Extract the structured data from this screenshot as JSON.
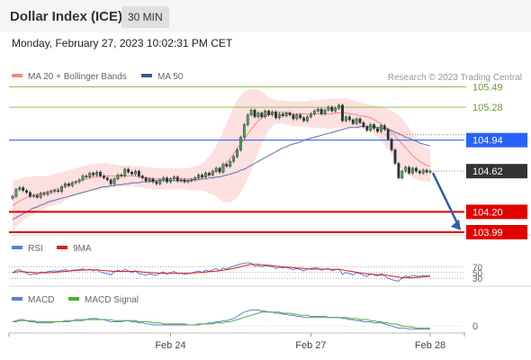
{
  "header": {
    "title": "Dollar Index (ICE)",
    "timeframe": "30 MIN"
  },
  "datetime": "Monday, February 27, 2023 10:02:31 PM CET",
  "legend": {
    "bollinger": {
      "label": "MA 20 + Bollinger Bands",
      "color": "#f28b82"
    },
    "ma50": {
      "label": "MA 50",
      "color": "#2d5f9e"
    },
    "rsi": {
      "label": "RSI",
      "color": "#5b7fd6"
    },
    "rsi_ma": {
      "label": "9MA",
      "color": "#d62020"
    },
    "macd": {
      "label": "MACD",
      "color": "#5b7fd6"
    },
    "macd_signal": {
      "label": "MACD Signal",
      "color": "#4caf3a"
    }
  },
  "credit": "Research © 2023 Trading Central",
  "levels": [
    {
      "value": 105.49,
      "label": "105.49",
      "kind": "resistance",
      "color": "#8bc34a"
    },
    {
      "value": 105.28,
      "label": "105.28",
      "kind": "resistance",
      "color": "#8bc34a"
    },
    {
      "value": 104.94,
      "label": "104.94",
      "kind": "pivot",
      "color": "#2962ff"
    },
    {
      "value": 104.62,
      "label": "104.62",
      "kind": "last",
      "color": "#333333"
    },
    {
      "value": 104.2,
      "label": "104.20",
      "kind": "support",
      "color": "#e00000"
    },
    {
      "value": 103.99,
      "label": "103.99",
      "kind": "support",
      "color": "#e00000"
    }
  ],
  "rsi_levels": [
    "70",
    "50",
    "30"
  ],
  "macd_zero": "0",
  "x_labels": [
    "Feb 24",
    "Feb 27",
    "Feb 28"
  ],
  "chart_data": {
    "type": "candlestick",
    "ylim": [
      103.99,
      105.55
    ],
    "close": [
      104.36,
      104.43,
      104.45,
      104.42,
      104.4,
      104.36,
      104.37,
      104.35,
      104.39,
      104.38,
      104.4,
      104.41,
      104.42,
      104.41,
      104.46,
      104.49,
      104.47,
      104.5,
      104.51,
      104.53,
      104.57,
      104.56,
      104.6,
      104.58,
      104.61,
      104.57,
      104.55,
      104.53,
      104.49,
      104.54,
      104.58,
      104.57,
      104.64,
      104.61,
      104.59,
      104.62,
      104.57,
      104.55,
      104.52,
      104.54,
      104.51,
      104.49,
      104.53,
      104.55,
      104.51,
      104.54,
      104.56,
      104.52,
      104.53,
      104.51,
      104.52,
      104.53,
      104.55,
      104.58,
      104.56,
      104.6,
      104.58,
      104.62,
      104.65,
      104.61,
      104.69,
      104.67,
      104.72,
      104.77,
      104.84,
      104.97,
      105.1,
      105.2,
      105.25,
      105.18,
      105.22,
      105.18,
      105.24,
      105.2,
      105.23,
      105.17,
      105.21,
      105.19,
      105.22,
      105.2,
      105.16,
      105.2,
      105.17,
      105.14,
      105.18,
      105.21,
      105.24,
      105.26,
      105.21,
      105.25,
      105.28,
      105.24,
      105.27,
      105.3,
      105.14,
      105.18,
      105.15,
      105.11,
      105.16,
      105.12,
      105.08,
      105.04,
      105.1,
      105.06,
      105.03,
      105.09,
      105.05,
      104.95,
      104.84,
      104.7,
      104.55,
      104.62,
      104.66,
      104.6,
      104.65,
      104.62,
      104.6,
      104.63,
      104.61,
      104.62
    ],
    "ma20": [
      104.26,
      104.29,
      104.31,
      104.33,
      104.35,
      104.36,
      104.37,
      104.38,
      104.39,
      104.4,
      104.41,
      104.42,
      104.43,
      104.44,
      104.45,
      104.47,
      104.48,
      104.5,
      104.51,
      104.52,
      104.53,
      104.54,
      104.55,
      104.56,
      104.56,
      104.57,
      104.57,
      104.57,
      104.57,
      104.57,
      104.57,
      104.57,
      104.57,
      104.57,
      104.57,
      104.57,
      104.56,
      104.56,
      104.55,
      104.55,
      104.54,
      104.54,
      104.54,
      104.54,
      104.54,
      104.54,
      104.54,
      104.54,
      104.54,
      104.54,
      104.54,
      104.54,
      104.55,
      104.55,
      104.56,
      104.57,
      104.58,
      104.6,
      104.62,
      104.64,
      104.67,
      104.71,
      104.75,
      104.8,
      104.85,
      104.9,
      104.95,
      105.0,
      105.05,
      105.1,
      105.14,
      105.17,
      105.19,
      105.21,
      105.22,
      105.23,
      105.23,
      105.23,
      105.22,
      105.22,
      105.21,
      105.21,
      105.21,
      105.21,
      105.21,
      105.21,
      105.21,
      105.21,
      105.21,
      105.21,
      105.21,
      105.21,
      105.22,
      105.22,
      105.22,
      105.22,
      105.21,
      105.21,
      105.2,
      105.19,
      105.19,
      105.18,
      105.17,
      105.15,
      105.13,
      105.11,
      105.08,
      105.05,
      105.02,
      104.98,
      104.94,
      104.9,
      104.86,
      104.82,
      104.78,
      104.75,
      104.72,
      104.7,
      104.68,
      104.67
    ],
    "bb_upper": [
      104.52,
      104.53,
      104.54,
      104.55,
      104.56,
      104.56,
      104.57,
      104.57,
      104.57,
      104.57,
      104.57,
      104.58,
      104.59,
      104.6,
      104.61,
      104.62,
      104.63,
      104.64,
      104.65,
      104.66,
      104.67,
      104.68,
      104.69,
      104.69,
      104.7,
      104.7,
      104.7,
      104.7,
      104.69,
      104.69,
      104.68,
      104.68,
      104.68,
      104.68,
      104.68,
      104.68,
      104.67,
      104.67,
      104.66,
      104.66,
      104.65,
      104.65,
      104.65,
      104.65,
      104.65,
      104.65,
      104.65,
      104.65,
      104.65,
      104.65,
      104.65,
      104.66,
      104.67,
      104.68,
      104.7,
      104.73,
      104.77,
      104.82,
      104.88,
      104.95,
      105.04,
      105.12,
      105.2,
      105.28,
      105.35,
      105.4,
      105.44,
      105.46,
      105.47,
      105.47,
      105.46,
      105.44,
      105.41,
      105.38,
      105.36,
      105.35,
      105.35,
      105.35,
      105.34,
      105.34,
      105.34,
      105.34,
      105.34,
      105.34,
      105.34,
      105.35,
      105.35,
      105.35,
      105.36,
      105.36,
      105.36,
      105.37,
      105.37,
      105.37,
      105.37,
      105.37,
      105.36,
      105.35,
      105.34,
      105.33,
      105.32,
      105.31,
      105.3,
      105.3,
      105.29,
      105.28,
      105.27,
      105.26,
      105.24,
      105.22,
      105.2,
      105.16,
      105.11,
      105.06,
      105.01,
      104.96,
      104.92,
      104.88,
      104.85,
      104.83
    ],
    "bb_lower": [
      104.0,
      104.05,
      104.08,
      104.11,
      104.14,
      104.16,
      104.17,
      104.19,
      104.21,
      104.23,
      104.25,
      104.26,
      104.27,
      104.28,
      104.29,
      104.32,
      104.33,
      104.36,
      104.37,
      104.38,
      104.39,
      104.4,
      104.41,
      104.43,
      104.42,
      104.44,
      104.44,
      104.44,
      104.45,
      104.45,
      104.46,
      104.46,
      104.46,
      104.46,
      104.46,
      104.46,
      104.45,
      104.45,
      104.44,
      104.44,
      104.43,
      104.43,
      104.43,
      104.43,
      104.43,
      104.43,
      104.43,
      104.43,
      104.43,
      104.43,
      104.43,
      104.42,
      104.43,
      104.42,
      104.42,
      104.41,
      104.39,
      104.38,
      104.36,
      104.33,
      104.3,
      104.3,
      104.3,
      104.32,
      104.35,
      104.4,
      104.46,
      104.54,
      104.63,
      104.73,
      104.82,
      104.9,
      104.97,
      105.04,
      105.08,
      105.11,
      105.11,
      105.11,
      105.1,
      105.1,
      105.08,
      105.08,
      105.08,
      105.08,
      105.08,
      105.07,
      105.07,
      105.07,
      105.06,
      105.06,
      105.06,
      105.05,
      105.07,
      105.07,
      105.07,
      105.07,
      105.06,
      105.07,
      105.06,
      105.05,
      105.06,
      105.05,
      105.04,
      105.0,
      104.97,
      104.94,
      104.89,
      104.84,
      104.8,
      104.74,
      104.68,
      104.64,
      104.61,
      104.58,
      104.55,
      104.54,
      104.52,
      104.52,
      104.51,
      104.51
    ],
    "ma50": [
      104.12,
      104.14,
      104.16,
      104.18,
      104.2,
      104.22,
      104.24,
      104.25,
      104.27,
      104.28,
      104.3,
      104.31,
      104.32,
      104.33,
      104.34,
      104.35,
      104.36,
      104.37,
      104.38,
      104.39,
      104.4,
      104.41,
      104.42,
      104.43,
      104.44,
      104.45,
      104.46,
      104.46,
      104.47,
      104.47,
      104.48,
      104.48,
      104.49,
      104.49,
      104.5,
      104.5,
      104.5,
      104.51,
      104.51,
      104.51,
      104.52,
      104.52,
      104.52,
      104.52,
      104.52,
      104.52,
      104.52,
      104.52,
      104.52,
      104.52,
      104.52,
      104.53,
      104.53,
      104.53,
      104.54,
      104.54,
      104.55,
      104.55,
      104.56,
      104.56,
      104.57,
      104.58,
      104.59,
      104.6,
      104.61,
      104.63,
      104.64,
      104.66,
      104.68,
      104.7,
      104.72,
      104.74,
      104.76,
      104.78,
      104.8,
      104.82,
      104.84,
      104.86,
      104.87,
      104.89,
      104.9,
      104.91,
      104.92,
      104.94,
      104.95,
      104.96,
      104.97,
      104.98,
      104.99,
      105.0,
      105.01,
      105.02,
      105.03,
      105.04,
      105.05,
      105.06,
      105.07,
      105.07,
      105.07,
      105.08,
      105.08,
      105.08,
      105.08,
      105.08,
      105.07,
      105.07,
      105.06,
      105.05,
      105.04,
      105.02,
      105.01,
      104.99,
      104.97,
      104.96,
      104.94,
      104.93,
      104.91,
      104.9,
      104.89,
      104.88
    ],
    "rsi": [
      48,
      58,
      60,
      52,
      48,
      42,
      46,
      44,
      52,
      50,
      53,
      55,
      56,
      54,
      58,
      60,
      55,
      58,
      59,
      60,
      63,
      58,
      62,
      56,
      60,
      52,
      48,
      46,
      42,
      52,
      58,
      54,
      62,
      55,
      50,
      56,
      46,
      44,
      40,
      46,
      42,
      40,
      48,
      52,
      44,
      50,
      54,
      46,
      48,
      44,
      46,
      48,
      52,
      56,
      50,
      58,
      54,
      60,
      64,
      56,
      66,
      62,
      68,
      72,
      76,
      80,
      82,
      84,
      82,
      72,
      74,
      70,
      74,
      70,
      72,
      64,
      68,
      66,
      68,
      64,
      60,
      64,
      60,
      56,
      62,
      64,
      66,
      66,
      58,
      62,
      64,
      56,
      60,
      62,
      44,
      50,
      46,
      42,
      50,
      46,
      40,
      36,
      46,
      42,
      38,
      46,
      40,
      30,
      26,
      22,
      20,
      32,
      38,
      34,
      40,
      38,
      36,
      40,
      38,
      40
    ],
    "rsi_9ma": [
      50,
      52,
      53,
      53,
      52,
      51,
      50,
      49,
      49,
      49,
      49,
      50,
      51,
      52,
      53,
      54,
      55,
      56,
      57,
      58,
      58,
      59,
      59,
      59,
      59,
      58,
      57,
      56,
      55,
      54,
      54,
      54,
      54,
      54,
      54,
      54,
      53,
      52,
      51,
      50,
      49,
      48,
      48,
      47,
      47,
      47,
      47,
      47,
      47,
      47,
      47,
      48,
      49,
      50,
      51,
      52,
      53,
      54,
      55,
      56,
      58,
      60,
      62,
      64,
      67,
      70,
      73,
      76,
      78,
      78,
      78,
      77,
      76,
      75,
      74,
      72,
      71,
      70,
      69,
      68,
      67,
      66,
      65,
      64,
      63,
      62,
      62,
      62,
      62,
      62,
      62,
      61,
      61,
      61,
      59,
      57,
      55,
      53,
      51,
      49,
      47,
      45,
      44,
      43,
      42,
      42,
      41,
      40,
      38,
      36,
      34,
      32,
      32,
      32,
      32,
      33,
      34,
      35,
      36,
      37
    ],
    "macd": [
      0.04,
      0.05,
      0.06,
      0.06,
      0.05,
      0.04,
      0.04,
      0.03,
      0.03,
      0.03,
      0.03,
      0.03,
      0.04,
      0.04,
      0.04,
      0.05,
      0.05,
      0.05,
      0.06,
      0.06,
      0.06,
      0.06,
      0.07,
      0.07,
      0.07,
      0.06,
      0.06,
      0.05,
      0.04,
      0.04,
      0.04,
      0.04,
      0.05,
      0.05,
      0.04,
      0.04,
      0.03,
      0.03,
      0.02,
      0.02,
      0.01,
      0.01,
      0.01,
      0.01,
      0.01,
      0.01,
      0.01,
      0.01,
      0.01,
      0.01,
      0.01,
      0.01,
      0.01,
      0.02,
      0.02,
      0.02,
      0.03,
      0.03,
      0.04,
      0.04,
      0.05,
      0.05,
      0.06,
      0.07,
      0.09,
      0.11,
      0.13,
      0.14,
      0.15,
      0.15,
      0.15,
      0.14,
      0.14,
      0.13,
      0.13,
      0.12,
      0.12,
      0.11,
      0.11,
      0.1,
      0.1,
      0.09,
      0.09,
      0.08,
      0.08,
      0.08,
      0.08,
      0.08,
      0.08,
      0.08,
      0.08,
      0.08,
      0.08,
      0.08,
      0.07,
      0.07,
      0.06,
      0.06,
      0.05,
      0.05,
      0.04,
      0.04,
      0.04,
      0.03,
      0.03,
      0.03,
      0.02,
      0.01,
      0.0,
      -0.01,
      -0.02,
      -0.02,
      -0.02,
      -0.03,
      -0.03,
      -0.03,
      -0.03,
      -0.03,
      -0.03,
      -0.03
    ],
    "macd_signal": [
      0.04,
      0.04,
      0.05,
      0.05,
      0.05,
      0.05,
      0.05,
      0.04,
      0.04,
      0.04,
      0.04,
      0.04,
      0.04,
      0.04,
      0.04,
      0.04,
      0.04,
      0.05,
      0.05,
      0.05,
      0.05,
      0.06,
      0.06,
      0.06,
      0.06,
      0.06,
      0.06,
      0.06,
      0.06,
      0.05,
      0.05,
      0.05,
      0.05,
      0.05,
      0.05,
      0.05,
      0.04,
      0.04,
      0.04,
      0.04,
      0.03,
      0.03,
      0.03,
      0.02,
      0.02,
      0.02,
      0.02,
      0.02,
      0.02,
      0.02,
      0.01,
      0.01,
      0.01,
      0.01,
      0.02,
      0.02,
      0.02,
      0.02,
      0.03,
      0.03,
      0.03,
      0.04,
      0.04,
      0.05,
      0.06,
      0.07,
      0.08,
      0.09,
      0.1,
      0.11,
      0.12,
      0.13,
      0.13,
      0.13,
      0.13,
      0.13,
      0.13,
      0.12,
      0.12,
      0.12,
      0.11,
      0.11,
      0.1,
      0.1,
      0.1,
      0.09,
      0.09,
      0.09,
      0.09,
      0.09,
      0.08,
      0.08,
      0.08,
      0.08,
      0.08,
      0.08,
      0.07,
      0.07,
      0.07,
      0.06,
      0.06,
      0.06,
      0.05,
      0.05,
      0.04,
      0.04,
      0.03,
      0.03,
      0.02,
      0.02,
      0.01,
      0.0,
      0.0,
      -0.01,
      -0.01,
      -0.02,
      -0.02,
      -0.02,
      -0.02,
      -0.02
    ],
    "x_label_index": [
      45,
      85,
      119
    ]
  }
}
